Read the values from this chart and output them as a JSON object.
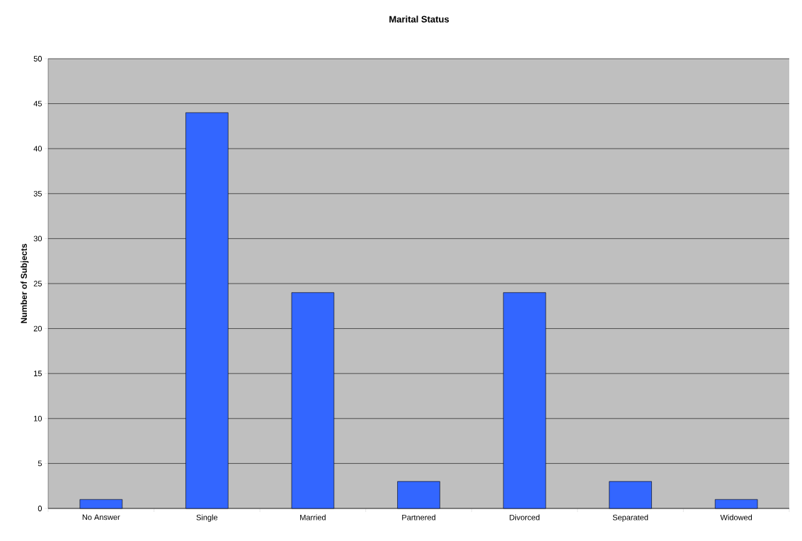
{
  "chart_data": {
    "type": "bar",
    "title": "Marital Status",
    "ylabel": "Number of Subjects",
    "categories": [
      "No Answer",
      "Single",
      "Married",
      "Partnered",
      "Divorced",
      "Separated",
      "Widowed"
    ],
    "values": [
      1,
      44,
      24,
      3,
      24,
      3,
      1
    ],
    "color": "#3366ff",
    "ylim": [
      0,
      50
    ],
    "yticks": [
      0,
      5,
      10,
      15,
      20,
      25,
      30,
      35,
      40,
      45,
      50
    ],
    "grid": "y"
  }
}
